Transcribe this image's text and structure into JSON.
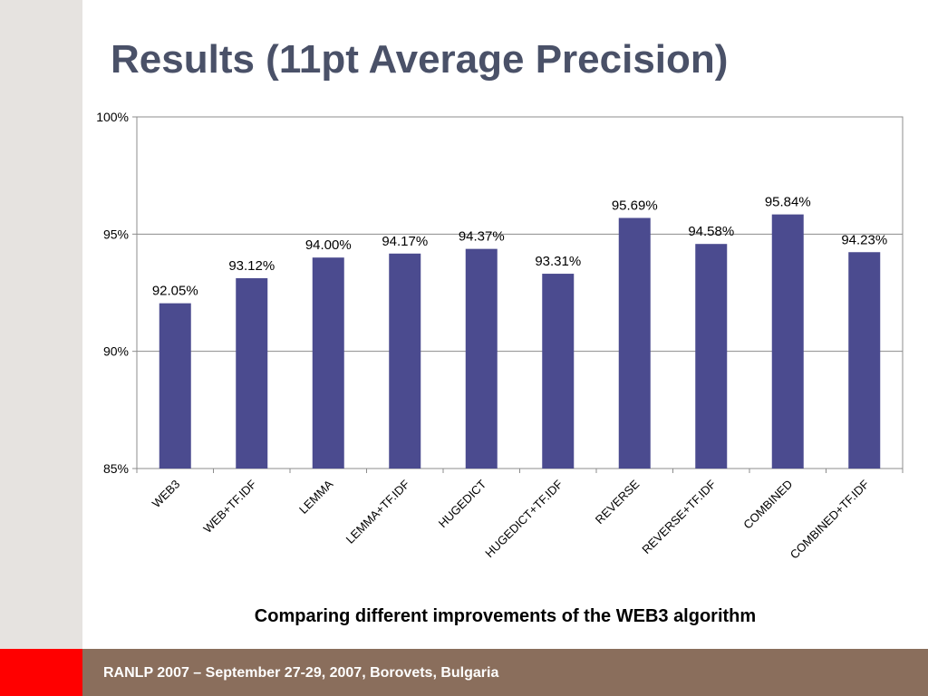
{
  "slide": {
    "title": "Results (11pt Average Precision)",
    "caption": "Comparing different improvements of the WEB3 algorithm",
    "footer": "RANLP 2007 – September 27-29, 2007, Borovets, Bulgaria"
  },
  "colors": {
    "title": "#4a5168",
    "bar": "#4b4b8f",
    "footer_bar": "#8a6e5c",
    "footer_accent": "#ff0000",
    "left_stripe": "#e6e3e0"
  },
  "chart_data": {
    "type": "bar",
    "title": "",
    "xlabel": "",
    "ylabel": "",
    "categories": [
      "WEB3",
      "WEB+TF.IDF",
      "LEMMA",
      "LEMMA+TF.IDF",
      "HUGEDICT",
      "HUGEDICT+TF.IDF",
      "REVERSE",
      "REVERSE+TF.IDF",
      "COMBINED",
      "COMBINED+TF.IDF"
    ],
    "values": [
      92.05,
      93.12,
      94.0,
      94.17,
      94.37,
      93.31,
      95.69,
      94.58,
      95.84,
      94.23
    ],
    "data_labels": [
      "92.05%",
      "93.12%",
      "94.00%",
      "94.17%",
      "94.37%",
      "93.31%",
      "95.69%",
      "94.58%",
      "95.84%",
      "94.23%"
    ],
    "ylim": [
      85,
      100
    ],
    "y_ticks": [
      85,
      90,
      95,
      100
    ],
    "y_tick_labels": [
      "85%",
      "90%",
      "95%",
      "100%"
    ],
    "grid": true,
    "legend": "none"
  }
}
